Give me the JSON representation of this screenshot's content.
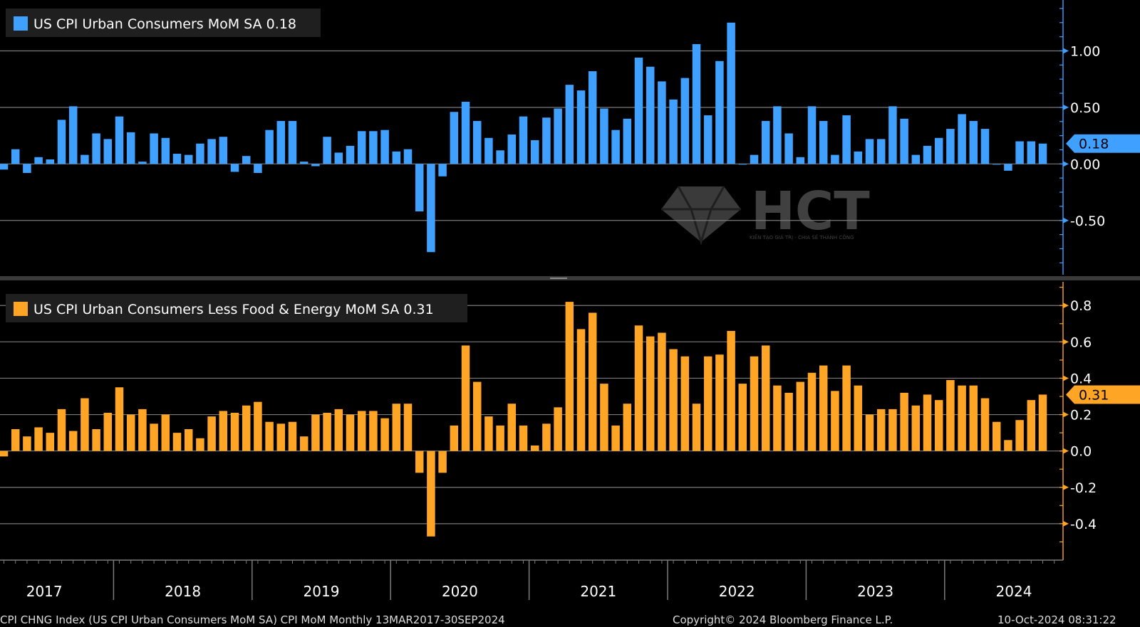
{
  "colors": {
    "background": "#000000",
    "grid": "#7a7a7a",
    "axis": "#7b7b7b",
    "headline_series": "#3fa0ff",
    "core_series": "#ffa526"
  },
  "chart_data": [
    {
      "type": "bar",
      "legend": "US CPI Urban Consumers MoM SA 0.18",
      "last_value_label": "0.18",
      "ylim": [
        -0.98,
        1.45
      ],
      "y_ticks": [
        1.0,
        0.5,
        0.0,
        -0.5
      ],
      "y_tick_labels": [
        "1.00",
        "0.50",
        "0.00",
        "-0.50"
      ],
      "grid": true,
      "legend_position": "top-left",
      "x_start": "2017-03",
      "x_end": "2024-09",
      "series": [
        {
          "values": [
            -0.05,
            0.13,
            -0.08,
            0.06,
            0.04,
            0.39,
            0.51,
            0.08,
            0.27,
            0.22,
            0.42,
            0.28,
            0.02,
            0.27,
            0.23,
            0.09,
            0.08,
            0.18,
            0.22,
            0.24,
            -0.07,
            0.07,
            -0.08,
            0.3,
            0.38,
            0.38,
            0.02,
            -0.02,
            0.24,
            0.1,
            0.16,
            0.29,
            0.29,
            0.3,
            0.11,
            0.13,
            -0.42,
            -0.78,
            -0.11,
            0.46,
            0.55,
            0.38,
            0.23,
            0.12,
            0.26,
            0.42,
            0.21,
            0.41,
            0.49,
            0.7,
            0.65,
            0.82,
            0.49,
            0.3,
            0.4,
            0.94,
            0.86,
            0.73,
            0.57,
            0.76,
            1.06,
            0.43,
            0.91,
            1.25,
            0.0,
            0.08,
            0.38,
            0.51,
            0.27,
            0.06,
            0.51,
            0.38,
            0.08,
            0.43,
            0.11,
            0.22,
            0.22,
            0.51,
            0.4,
            0.08,
            0.16,
            0.23,
            0.31,
            0.44,
            0.38,
            0.31,
            0.0,
            -0.06,
            0.2,
            0.2,
            0.18
          ]
        }
      ]
    },
    {
      "type": "bar",
      "legend": "US CPI Urban Consumers Less Food & Energy MoM SA 0.31",
      "last_value_label": "0.31",
      "ylim": [
        -0.6,
        0.93
      ],
      "y_ticks": [
        0.8,
        0.6,
        0.4,
        0.2,
        0.0,
        -0.2,
        -0.4
      ],
      "y_tick_labels": [
        "0.8",
        "0.6",
        "0.4",
        "0.2",
        "0.0",
        "-0.2",
        "-0.4"
      ],
      "grid": true,
      "legend_position": "top-left",
      "x_start": "2017-03",
      "x_end": "2024-09",
      "series": [
        {
          "values": [
            -0.03,
            0.12,
            0.08,
            0.13,
            0.1,
            0.23,
            0.11,
            0.29,
            0.12,
            0.21,
            0.35,
            0.2,
            0.23,
            0.15,
            0.2,
            0.1,
            0.12,
            0.07,
            0.19,
            0.22,
            0.21,
            0.25,
            0.27,
            0.16,
            0.15,
            0.16,
            0.08,
            0.2,
            0.21,
            0.23,
            0.2,
            0.22,
            0.22,
            0.18,
            0.26,
            0.26,
            -0.12,
            -0.47,
            -0.12,
            0.14,
            0.58,
            0.38,
            0.19,
            0.14,
            0.26,
            0.14,
            0.03,
            0.15,
            0.24,
            0.82,
            0.67,
            0.76,
            0.37,
            0.14,
            0.26,
            0.69,
            0.63,
            0.65,
            0.56,
            0.52,
            0.26,
            0.52,
            0.53,
            0.66,
            0.37,
            0.52,
            0.58,
            0.36,
            0.32,
            0.38,
            0.43,
            0.47,
            0.33,
            0.47,
            0.36,
            0.2,
            0.23,
            0.23,
            0.32,
            0.25,
            0.31,
            0.28,
            0.39,
            0.36,
            0.36,
            0.29,
            0.16,
            0.06,
            0.17,
            0.28,
            0.31
          ]
        }
      ]
    }
  ],
  "x_axis": {
    "year_labels": [
      "2017",
      "2018",
      "2019",
      "2020",
      "2021",
      "2022",
      "2023",
      "2024"
    ]
  },
  "footer": {
    "ticker_text": "CPI CHNG Index (US CPI Urban Consumers MoM SA) CPI MoM  Monthly 13MAR2017-30SEP2024",
    "copyright_text": "Copyright© 2024 Bloomberg Finance L.P.",
    "timestamp_text": "10-Oct-2024 08:31:22"
  },
  "watermark": {
    "logo_text": "HCT",
    "tagline": "KIẾN TẠO GIÁ TRỊ - CHIA SẺ THÀNH CÔNG"
  }
}
